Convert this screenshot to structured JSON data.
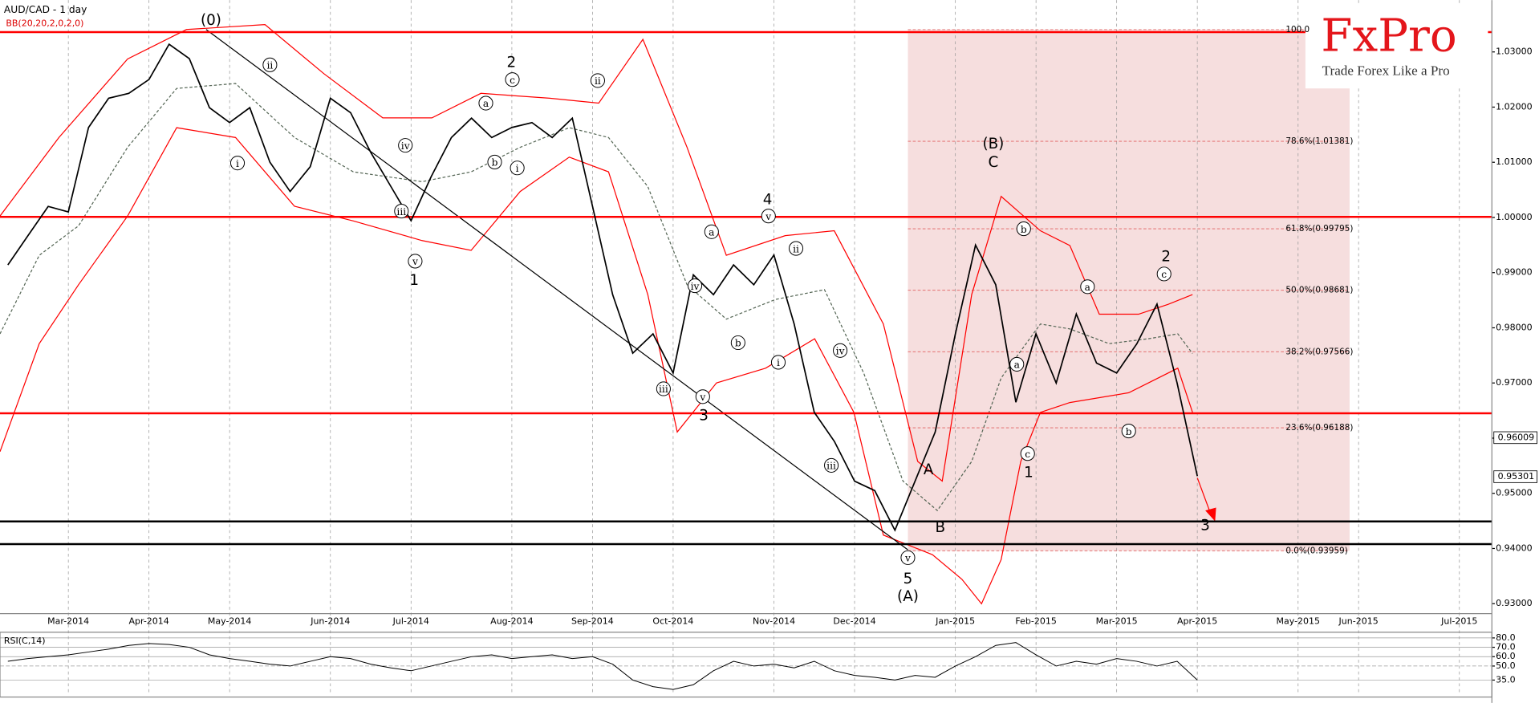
{
  "chart_data": [
    {
      "type": "line",
      "title": "AUD/CAD - 1 day",
      "subtitle": "BB(20,20,2,0,2,0)",
      "brand": "FxPro",
      "tagline": "Trade Forex Like a Pro",
      "color": "#000000",
      "categories": [
        null,
        null,
        null,
        "Mar-2014",
        null,
        null,
        null,
        "Apr-2014",
        null,
        null,
        null,
        "May-2014",
        null,
        null,
        null,
        null,
        "Jun-2014",
        null,
        null,
        null,
        "Jul-2014",
        null,
        null,
        null,
        null,
        "Aug-2014",
        null,
        null,
        null,
        "Sep-2014",
        null,
        null,
        null,
        "Oct-2014",
        null,
        null,
        null,
        null,
        "Nov-2014",
        null,
        null,
        null,
        "Dec-2014",
        null,
        null,
        null,
        null,
        "Jan-2015",
        null,
        null,
        null,
        "Feb-2015",
        null,
        null,
        null,
        "Mar-2015",
        null,
        null,
        null,
        "Apr-2015",
        null,
        null,
        null,
        null,
        "May-2015",
        null,
        null,
        "Jun-2015",
        null,
        null,
        null,
        null,
        "Jul-2015",
        null
      ],
      "values": [
        0.9914,
        0.9967,
        1.002,
        1.001,
        1.0163,
        1.0216,
        1.0225,
        1.025,
        1.0314,
        1.0288,
        1.0199,
        1.0172,
        1.0199,
        1.01,
        1.0047,
        1.0092,
        1.0216,
        1.019,
        1.0118,
        1.0056,
        0.9994,
        1.0074,
        1.0145,
        1.018,
        1.0145,
        1.0163,
        1.0172,
        1.0145,
        1.018,
        1.002,
        0.986,
        0.9754,
        0.9789,
        0.9718,
        0.9896,
        0.986,
        0.9914,
        0.9878,
        0.9932,
        0.9807,
        0.9647,
        0.9594,
        0.9522,
        0.9505,
        0.9433,
        0.9522,
        0.9611,
        0.9789,
        0.995,
        0.9878,
        0.9665,
        0.9789,
        0.97,
        0.9825,
        0.9736,
        0.9718,
        0.9771,
        0.9843,
        0.97,
        0.9531,
        null,
        null,
        null,
        null,
        null,
        null,
        null,
        null,
        null,
        null,
        null,
        null,
        null,
        null
      ],
      "ylim": [
        0.9282,
        1.0394
      ],
      "yticks": [
        {
          "value": 0.93,
          "label": "0.93000"
        },
        {
          "value": 0.94,
          "label": "0.94000"
        },
        {
          "value": 0.95,
          "label": "0.95000"
        },
        {
          "value": 0.96,
          "label": "0.96000"
        },
        {
          "value": 0.97,
          "label": "0.97000"
        },
        {
          "value": 0.98,
          "label": "0.98000"
        },
        {
          "value": 0.99,
          "label": "0.99000"
        },
        {
          "value": 1.0,
          "label": "1.00000"
        },
        {
          "value": 1.01,
          "label": "1.01000"
        },
        {
          "value": 1.02,
          "label": "1.02000"
        },
        {
          "value": 1.03,
          "label": "1.03000"
        }
      ],
      "price_tags": [
        0.96009,
        0.95301
      ],
      "grid": true,
      "hlines": [
        {
          "value": 1.0336,
          "color": "#ff0000"
        },
        {
          "value": 1.0001,
          "color": "#ff0000"
        },
        {
          "value": 0.9645,
          "color": "#ff0000"
        },
        {
          "value": 0.9449,
          "color": "#000000"
        },
        {
          "value": 0.9408,
          "color": "#000000"
        }
      ],
      "fib_levels": [
        {
          "value": 1.03405,
          "label": "100.0"
        },
        {
          "value": 1.01381,
          "label": "78.6%(1.01381)"
        },
        {
          "value": 0.99795,
          "label": "61.8%(0.99795)"
        },
        {
          "value": 0.98681,
          "label": "50.0%(0.98681)"
        },
        {
          "value": 0.97566,
          "label": "38.2%(0.97566)"
        },
        {
          "value": 0.96188,
          "label": "23.6%(0.96188)"
        },
        {
          "value": 0.93959,
          "label": "0.0%(0.93959)"
        }
      ],
      "annotations": [
        "(0)",
        "ii",
        "i",
        "iv",
        "iii",
        "v",
        "1",
        "a",
        "c",
        "2",
        "b",
        "i",
        "ii",
        "v",
        "4",
        "a",
        "iv",
        "b",
        "ii",
        "i",
        "iv",
        "iii",
        "v",
        "3",
        "iii",
        "v",
        "5",
        "(A)",
        "A",
        "B",
        "(B)",
        "C",
        "b",
        "a",
        "c",
        "1",
        "a",
        "c",
        "2",
        "b",
        "3"
      ]
    },
    {
      "type": "line",
      "title": "RSI(C,14)",
      "color": "#000000",
      "values": [
        55,
        58,
        60,
        62,
        65,
        68,
        72,
        74,
        73,
        70,
        62,
        58,
        55,
        52,
        50,
        55,
        60,
        58,
        52,
        48,
        45,
        50,
        55,
        60,
        62,
        58,
        60,
        62,
        58,
        60,
        52,
        35,
        28,
        25,
        30,
        45,
        55,
        50,
        52,
        48,
        55,
        45,
        40,
        38,
        35,
        40,
        38,
        50,
        60,
        72,
        75,
        62,
        50,
        55,
        52,
        58,
        55,
        50,
        55,
        35,
        null,
        null,
        null,
        null,
        null,
        null,
        null,
        null,
        null,
        null,
        null,
        null,
        null,
        null
      ],
      "ylim": [
        19,
        85
      ],
      "yticks": [
        {
          "value": 80,
          "label": "80.0"
        },
        {
          "value": 70,
          "label": "70.0"
        },
        {
          "value": 60,
          "label": "60.0"
        },
        {
          "value": 50,
          "label": "50.0"
        },
        {
          "value": 35,
          "label": "35.0"
        }
      ]
    }
  ]
}
